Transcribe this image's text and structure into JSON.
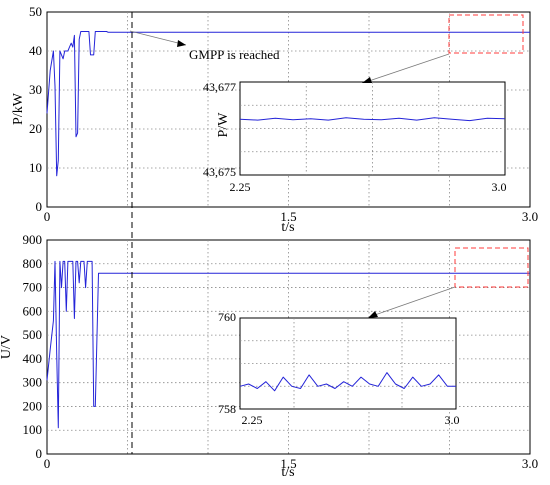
{
  "chart_data": [
    {
      "type": "line",
      "xlabel": "t/s",
      "ylabel": "P/kW",
      "xlim": [
        0,
        3.0
      ],
      "ylim": [
        0,
        50
      ],
      "x_ticks": [
        "0",
        "1.5",
        "3.0"
      ],
      "y_ticks": [
        "0",
        "10",
        "20",
        "30",
        "40",
        "50"
      ],
      "grid": true,
      "series": [
        {
          "x": [
            0.0,
            0.02,
            0.04,
            0.05,
            0.06,
            0.07,
            0.08,
            0.09,
            0.1,
            0.11,
            0.12,
            0.13,
            0.14,
            0.15,
            0.16,
            0.17,
            0.18,
            0.19,
            0.2,
            0.21,
            0.22,
            0.23,
            0.24,
            0.25,
            0.26,
            0.27,
            0.28,
            0.29,
            0.3,
            0.32,
            0.35,
            0.37,
            0.38,
            0.39,
            0.4,
            0.42,
            0.5,
            0.6,
            3.0
          ],
          "y": [
            24,
            35,
            40,
            31,
            8,
            12,
            40,
            39,
            38,
            40,
            40,
            40,
            41,
            42,
            41,
            44,
            18,
            19,
            43,
            45,
            45,
            45,
            45,
            45,
            45,
            39,
            39,
            39,
            45,
            45,
            45,
            45,
            44.8,
            44.8,
            44.8,
            44.8,
            44.8,
            44.8,
            44.8
          ]
        }
      ],
      "annotation": "GMPP is reached",
      "inset": {
        "ylabel": "P/W",
        "xlim": [
          2.25,
          3.0
        ],
        "ylim": [
          43675,
          43677
        ],
        "x_ticks": [
          "2.25",
          "3.0"
        ],
        "y_ticks": [
          "43,677",
          "43,675"
        ],
        "series": [
          {
            "x": [
              2.25,
              2.3,
              2.35,
              2.4,
              2.45,
              2.5,
              2.55,
              2.6,
              2.65,
              2.7,
              2.75,
              2.8,
              2.85,
              2.9,
              2.95,
              3.0
            ],
            "y": [
              43676.2,
              43676.18,
              43676.22,
              43676.19,
              43676.21,
              43676.18,
              43676.23,
              43676.2,
              43676.19,
              43676.22,
              43676.18,
              43676.23,
              43676.2,
              43676.17,
              43676.22,
              43676.21
            ]
          }
        ]
      }
    },
    {
      "type": "line",
      "xlabel": "t/s",
      "ylabel": "U/V",
      "xlim": [
        0,
        3.0
      ],
      "ylim": [
        0,
        900
      ],
      "x_ticks": [
        "0",
        "1.5",
        "3.0"
      ],
      "y_ticks": [
        "0",
        "100",
        "200",
        "300",
        "400",
        "500",
        "600",
        "700",
        "800",
        "900"
      ],
      "grid": true,
      "series": [
        {
          "x": [
            0.0,
            0.02,
            0.04,
            0.05,
            0.06,
            0.07,
            0.08,
            0.09,
            0.1,
            0.11,
            0.12,
            0.13,
            0.14,
            0.15,
            0.16,
            0.17,
            0.18,
            0.19,
            0.2,
            0.21,
            0.22,
            0.23,
            0.24,
            0.25,
            0.26,
            0.27,
            0.28,
            0.29,
            0.3,
            0.32,
            0.35,
            0.37,
            0.38,
            0.39,
            0.4,
            0.42,
            0.5,
            0.6,
            3.0
          ],
          "y": [
            310,
            440,
            560,
            810,
            420,
            110,
            810,
            700,
            810,
            810,
            600,
            810,
            810,
            810,
            810,
            570,
            810,
            810,
            720,
            810,
            810,
            810,
            700,
            810,
            810,
            810,
            810,
            200,
            200,
            760,
            760,
            760,
            760,
            760,
            760,
            760,
            760,
            760,
            760
          ]
        }
      ],
      "inset": {
        "xlim": [
          2.25,
          3.0
        ],
        "ylim": [
          758,
          760
        ],
        "x_ticks": [
          "2.25",
          "3.0"
        ],
        "y_ticks": [
          "760",
          "758"
        ],
        "series": [
          {
            "x": [
              2.25,
              2.28,
              2.31,
              2.34,
              2.37,
              2.4,
              2.43,
              2.46,
              2.49,
              2.52,
              2.55,
              2.58,
              2.61,
              2.64,
              2.67,
              2.7,
              2.73,
              2.76,
              2.79,
              2.82,
              2.85,
              2.88,
              2.91,
              2.94,
              2.97,
              3.0
            ],
            "y": [
              758.5,
              758.55,
              758.45,
              758.6,
              758.4,
              758.7,
              758.5,
              758.45,
              758.75,
              758.5,
              758.55,
              758.45,
              758.6,
              758.5,
              758.7,
              758.55,
              758.5,
              758.8,
              758.55,
              758.45,
              758.7,
              758.5,
              758.55,
              758.75,
              758.5,
              758.5
            ]
          }
        ]
      }
    }
  ]
}
